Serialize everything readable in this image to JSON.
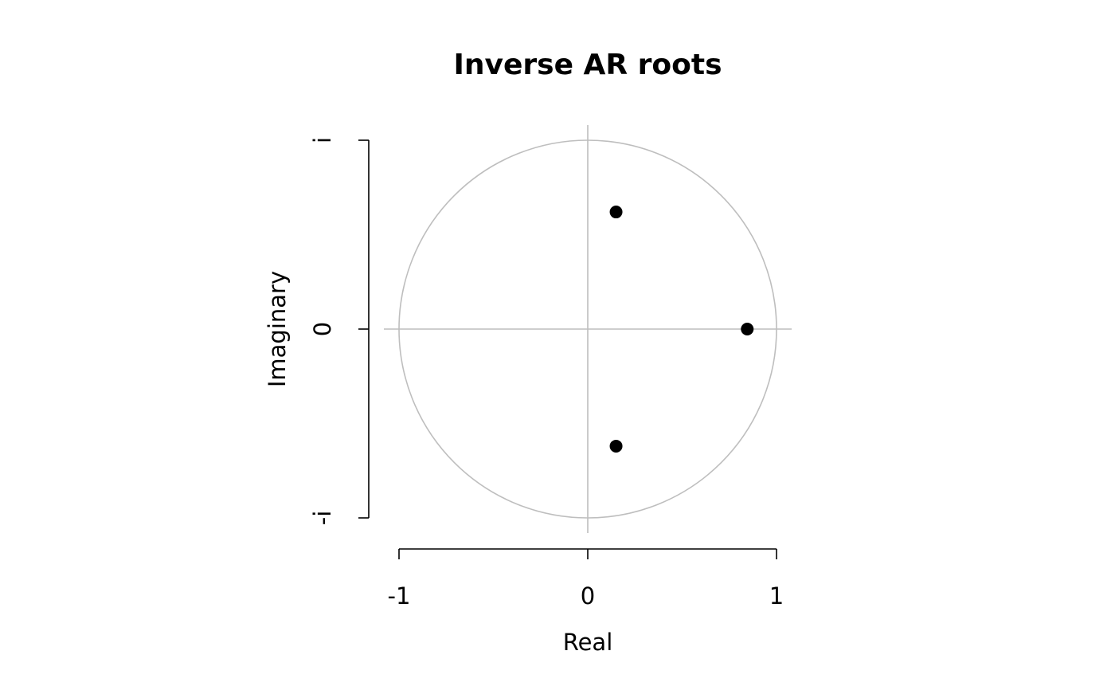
{
  "chart_data": {
    "type": "scatter",
    "title": "Inverse AR roots",
    "xlabel": "Real",
    "ylabel": "Imaginary",
    "xlim": [
      -1,
      1
    ],
    "ylim": [
      -1,
      1
    ],
    "x_ticks": [
      {
        "value": -1,
        "label": "-1"
      },
      {
        "value": 0,
        "label": "0"
      },
      {
        "value": 1,
        "label": "1"
      }
    ],
    "y_ticks": [
      {
        "value": -1,
        "label": "-i"
      },
      {
        "value": 0,
        "label": "0"
      },
      {
        "value": 1,
        "label": "i"
      }
    ],
    "unit_circle": true,
    "reference_lines": [
      "x=0",
      "y=0"
    ],
    "points": [
      {
        "x": 0.15,
        "y": 0.62
      },
      {
        "x": 0.845,
        "y": 0.0
      },
      {
        "x": 0.15,
        "y": -0.62
      }
    ],
    "colors": {
      "points": "#000000",
      "circle": "#bebebe",
      "axes": "#000000"
    }
  }
}
